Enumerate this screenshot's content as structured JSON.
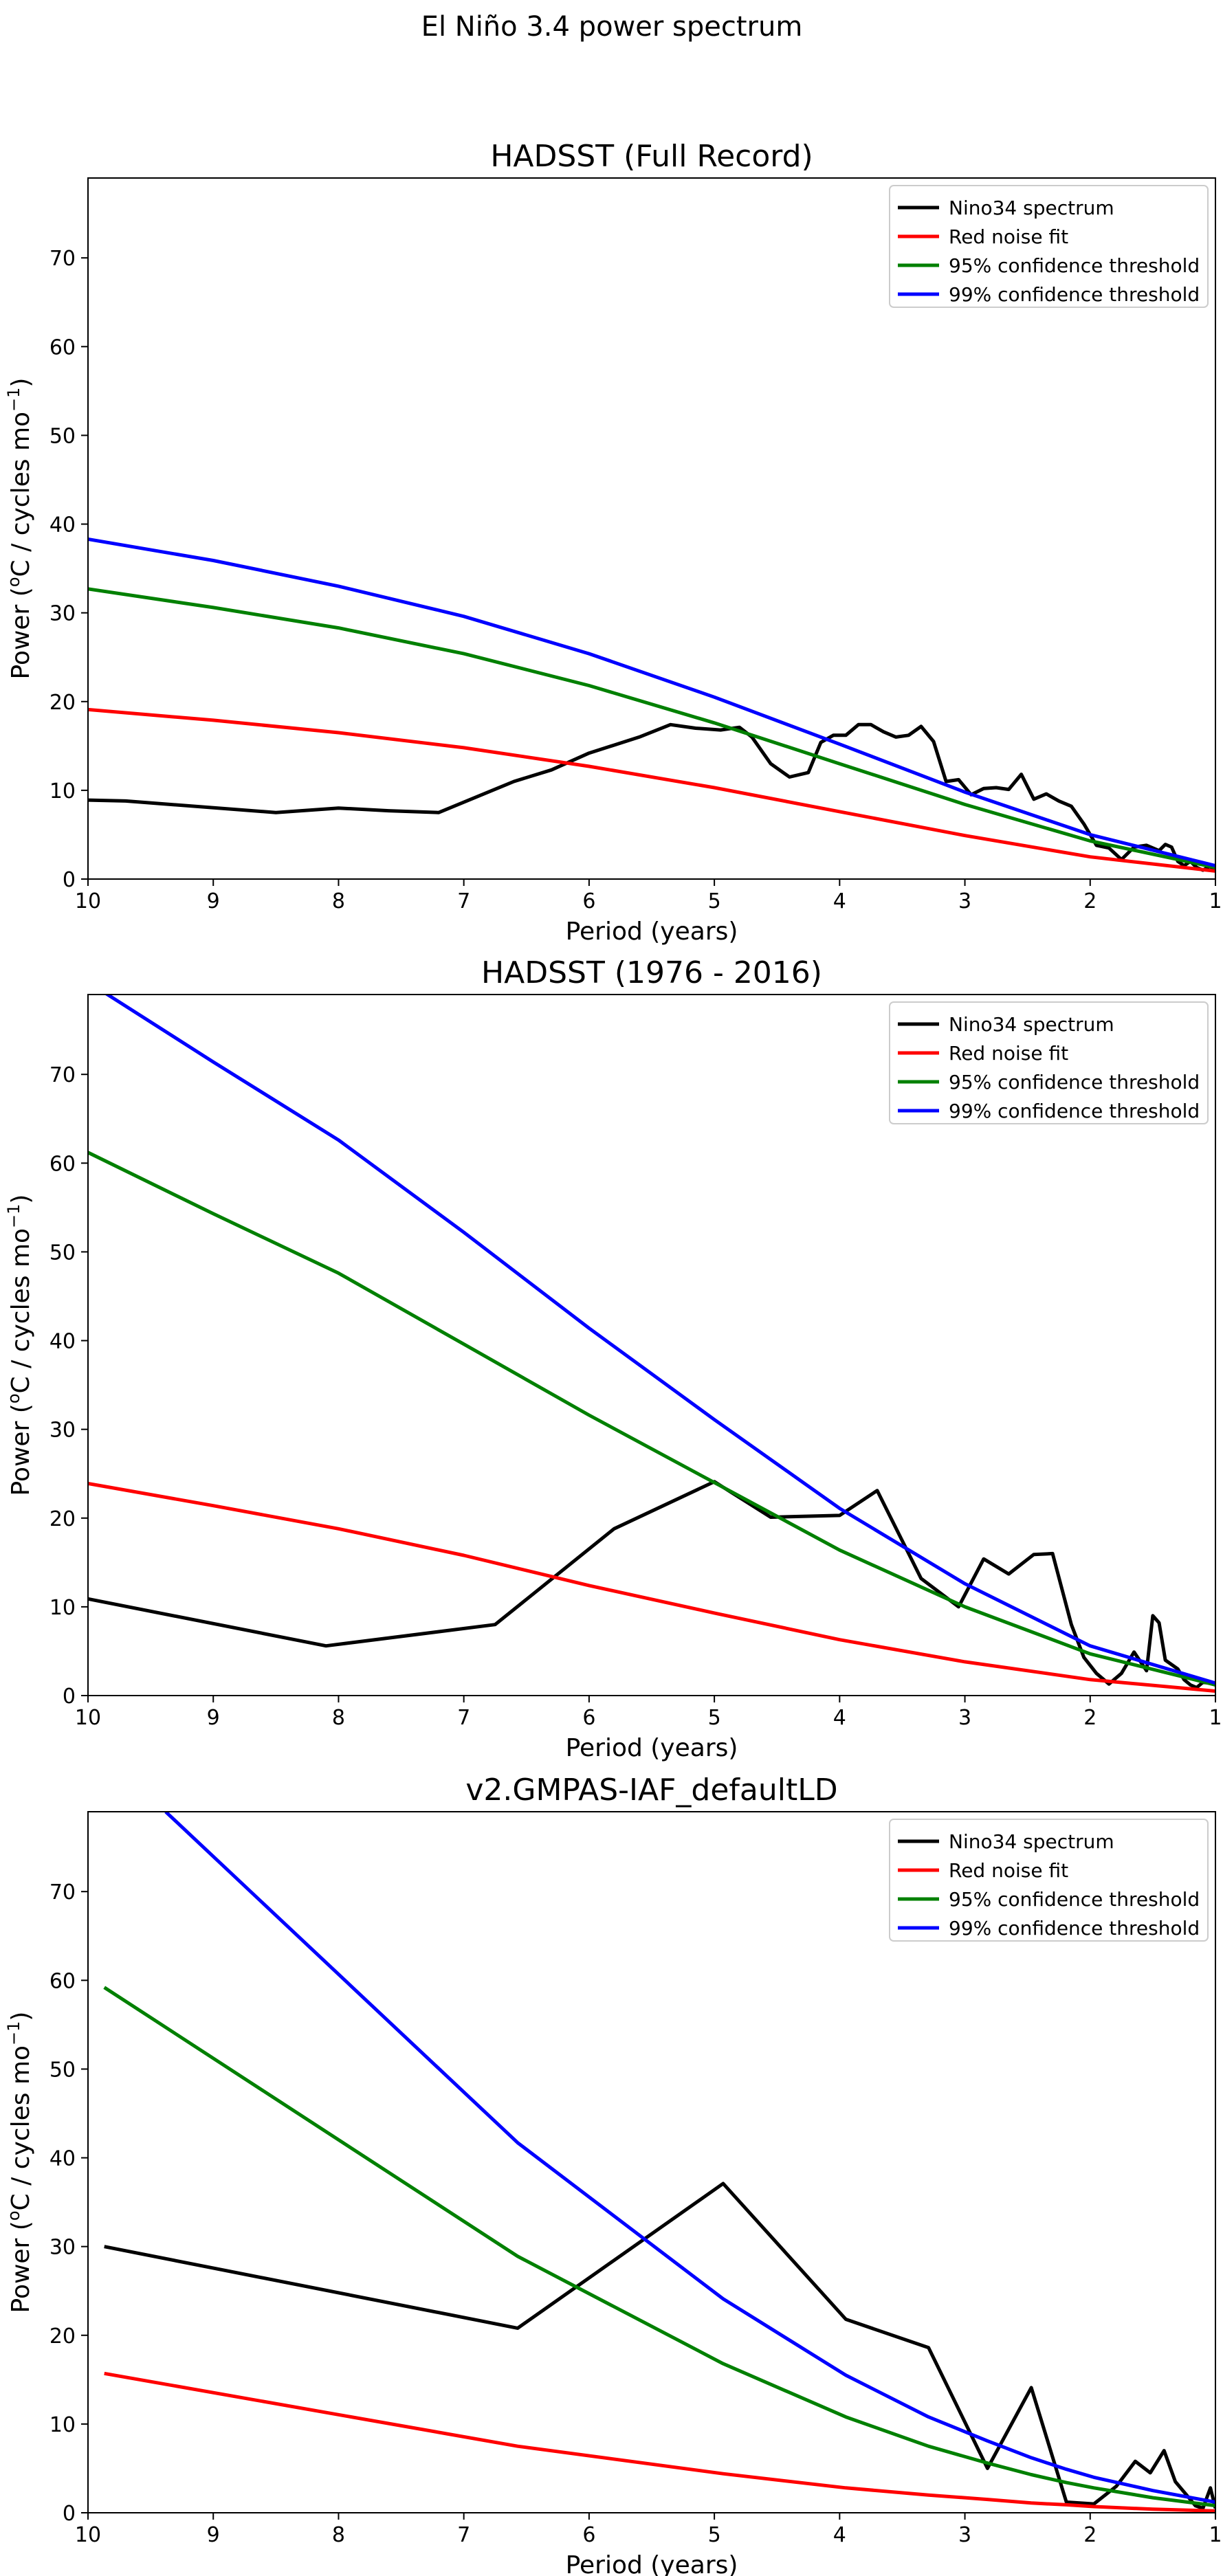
{
  "figure": {
    "suptitle": "El Niño 3.4 power spectrum"
  },
  "chart_data": [
    {
      "type": "line",
      "title": "HADSST (Full Record)",
      "xlabel": "Period (years)",
      "ylabel": "Power (",
      "ylabel_sup1": "o",
      "ylabel_mid": "C / cycles mo",
      "ylabel_sup2": "−1",
      "ylabel_end": ")",
      "xlim": [
        10,
        1
      ],
      "ylim": [
        0,
        79
      ],
      "xticks": [
        10,
        9,
        8,
        7,
        6,
        5,
        4,
        3,
        2,
        1
      ],
      "yticks": [
        0,
        10,
        20,
        30,
        40,
        50,
        60,
        70
      ],
      "legend_position": "top-right",
      "series": [
        {
          "name": "Nino34 spectrum",
          "color": "#000000",
          "x": [
            10,
            9.7,
            8.5,
            8.0,
            7.6,
            7.2,
            6.6,
            6.3,
            6.0,
            5.6,
            5.35,
            5.15,
            4.95,
            4.8,
            4.7,
            4.55,
            4.4,
            4.25,
            4.15,
            4.05,
            3.95,
            3.85,
            3.75,
            3.65,
            3.55,
            3.45,
            3.35,
            3.25,
            3.15,
            3.05,
            2.95,
            2.85,
            2.75,
            2.65,
            2.55,
            2.45,
            2.35,
            2.25,
            2.15,
            2.05,
            1.95,
            1.85,
            1.75,
            1.65,
            1.55,
            1.45,
            1.4,
            1.35,
            1.3,
            1.25,
            1.2,
            1.15,
            1.1,
            1.05,
            1.0
          ],
          "y": [
            8.9,
            8.8,
            7.5,
            8.0,
            7.7,
            7.5,
            11.0,
            12.3,
            14.2,
            16.0,
            17.4,
            17.0,
            16.8,
            17.1,
            16.0,
            13.0,
            11.5,
            12.0,
            15.4,
            16.2,
            16.2,
            17.4,
            17.4,
            16.6,
            16.0,
            16.2,
            17.2,
            15.5,
            11.0,
            11.2,
            9.5,
            10.2,
            10.3,
            10.1,
            11.8,
            9.0,
            9.6,
            8.8,
            8.2,
            6.2,
            3.8,
            3.5,
            2.2,
            3.6,
            3.8,
            3.2,
            3.9,
            3.6,
            2.0,
            1.5,
            2.0,
            1.3,
            1.0,
            1.4,
            1.2
          ]
        },
        {
          "name": "Red noise fit",
          "color": "#ff0000",
          "x": [
            10,
            9,
            8,
            7,
            6,
            5,
            4,
            3,
            2,
            1
          ],
          "y": [
            19.1,
            17.9,
            16.5,
            14.8,
            12.7,
            10.3,
            7.6,
            4.9,
            2.5,
            0.9
          ]
        },
        {
          "name": "95% confidence threshold",
          "color": "#008000",
          "x": [
            10,
            9,
            8,
            7,
            6,
            5,
            4,
            3,
            2,
            1
          ],
          "y": [
            32.7,
            30.6,
            28.3,
            25.4,
            21.8,
            17.6,
            13.0,
            8.4,
            4.3,
            1.3
          ]
        },
        {
          "name": "99% confidence threshold",
          "color": "#0000ff",
          "x": [
            10,
            9,
            8,
            7,
            6,
            5,
            4,
            3,
            2,
            1
          ],
          "y": [
            38.3,
            35.9,
            33.0,
            29.6,
            25.4,
            20.5,
            15.2,
            9.8,
            5.0,
            1.5
          ]
        }
      ]
    },
    {
      "type": "line",
      "title": "HADSST (1976 - 2016)",
      "xlabel": "Period (years)",
      "ylabel": "Power (",
      "ylabel_sup1": "o",
      "ylabel_mid": "C / cycles mo",
      "ylabel_sup2": "−1",
      "ylabel_end": ")",
      "xlim": [
        10,
        1
      ],
      "ylim": [
        0,
        79
      ],
      "xticks": [
        10,
        9,
        8,
        7,
        6,
        5,
        4,
        3,
        2,
        1
      ],
      "yticks": [
        0,
        10,
        20,
        30,
        40,
        50,
        60,
        70
      ],
      "legend_position": "top-right",
      "series": [
        {
          "name": "Nino34 spectrum",
          "color": "#000000",
          "x": [
            10,
            8.1,
            6.75,
            5.8,
            5.0,
            4.55,
            4.0,
            3.7,
            3.35,
            3.05,
            2.85,
            2.65,
            2.45,
            2.3,
            2.15,
            2.05,
            1.95,
            1.85,
            1.75,
            1.65,
            1.55,
            1.5,
            1.45,
            1.4,
            1.3,
            1.25,
            1.2,
            1.15,
            1.1,
            1.05,
            1.0
          ],
          "y": [
            10.9,
            5.6,
            8.0,
            18.8,
            24.1,
            20.1,
            20.3,
            23.1,
            13.2,
            10.0,
            15.4,
            13.7,
            15.9,
            16.0,
            8.0,
            4.3,
            2.5,
            1.3,
            2.5,
            4.9,
            2.8,
            9.0,
            8.2,
            4.0,
            3.0,
            1.8,
            1.2,
            0.9,
            1.5,
            1.4,
            1.2
          ]
        },
        {
          "name": "Red noise fit",
          "color": "#ff0000",
          "x": [
            10,
            9,
            8,
            7,
            6,
            5,
            4,
            3,
            2,
            1
          ],
          "y": [
            23.9,
            21.4,
            18.8,
            15.8,
            12.4,
            9.3,
            6.3,
            3.8,
            1.8,
            0.5
          ]
        },
        {
          "name": "95% confidence threshold",
          "color": "#008000",
          "x": [
            10,
            9,
            8,
            7,
            6,
            5,
            4,
            3,
            2,
            1
          ],
          "y": [
            61.2,
            54.3,
            47.6,
            39.6,
            31.6,
            24.0,
            16.4,
            10.0,
            4.7,
            1.2
          ]
        },
        {
          "name": "99% confidence threshold",
          "color": "#0000ff",
          "x": [
            10,
            9,
            8,
            7,
            6,
            5,
            4,
            3,
            2,
            1
          ],
          "y": [
            80.4,
            71.4,
            62.6,
            52.2,
            41.4,
            31.1,
            21.1,
            12.6,
            5.6,
            1.4
          ]
        }
      ]
    },
    {
      "type": "line",
      "title": "v2.GMPAS-IAF_defaultLD",
      "xlabel": "Period (years)",
      "ylabel": "Power (",
      "ylabel_sup1": "o",
      "ylabel_mid": "C / cycles mo",
      "ylabel_sup2": "−1",
      "ylabel_end": ")",
      "xlim": [
        10,
        1
      ],
      "ylim": [
        0,
        79
      ],
      "xticks": [
        10,
        9,
        8,
        7,
        6,
        5,
        4,
        3,
        2,
        1
      ],
      "yticks": [
        0,
        10,
        20,
        30,
        40,
        50,
        60,
        70
      ],
      "legend_position": "top-right",
      "series": [
        {
          "name": "Nino34 spectrum",
          "color": "#000000",
          "x": [
            9.87,
            6.57,
            4.93,
            3.95,
            3.29,
            2.82,
            2.47,
            2.19,
            1.97,
            1.79,
            1.64,
            1.52,
            1.41,
            1.32,
            1.23,
            1.16,
            1.1,
            1.04,
            1.0
          ],
          "y": [
            30.0,
            20.8,
            37.1,
            21.8,
            18.6,
            5.0,
            14.1,
            1.2,
            1.0,
            3.0,
            5.8,
            4.5,
            7.0,
            3.5,
            2.0,
            0.8,
            0.5,
            2.8,
            0.5
          ]
        },
        {
          "name": "Red noise fit",
          "color": "#ff0000",
          "x": [
            9.87,
            6.57,
            4.93,
            3.95,
            3.29,
            2.82,
            2.47,
            2.19,
            1.97,
            1.5,
            1.0
          ],
          "y": [
            15.7,
            7.5,
            4.4,
            2.8,
            2.0,
            1.5,
            1.1,
            0.9,
            0.7,
            0.4,
            0.2
          ]
        },
        {
          "name": "95% confidence threshold",
          "color": "#008000",
          "x": [
            9.87,
            6.57,
            4.93,
            3.95,
            3.29,
            2.82,
            2.47,
            2.19,
            1.97,
            1.5,
            1.0
          ],
          "y": [
            59.2,
            28.9,
            16.8,
            10.8,
            7.5,
            5.6,
            4.3,
            3.4,
            2.8,
            1.7,
            0.8
          ]
        },
        {
          "name": "99% confidence threshold",
          "color": "#0000ff",
          "x": [
            9.38,
            6.57,
            4.93,
            3.95,
            3.29,
            2.82,
            2.47,
            2.19,
            1.97,
            1.5,
            1.0
          ],
          "y": [
            79.0,
            41.7,
            24.1,
            15.5,
            10.8,
            8.1,
            6.2,
            4.9,
            4.0,
            2.5,
            1.2
          ]
        }
      ]
    }
  ]
}
